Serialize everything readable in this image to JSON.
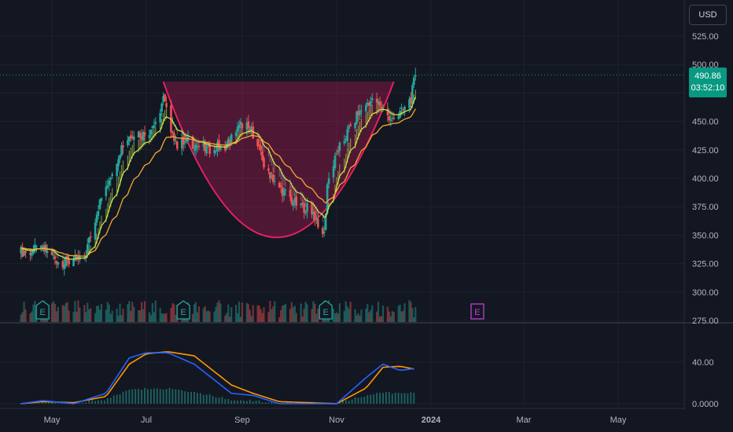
{
  "header": {
    "currency": "USD"
  },
  "last_price": {
    "value": "490.86",
    "countdown": "03:52:10"
  },
  "chart_data": {
    "type": "candlestick",
    "title": "",
    "price_axis": {
      "ticks": [
        "525.00",
        "500.00",
        "450.00",
        "425.00",
        "400.00",
        "375.00",
        "350.00",
        "325.00",
        "300.00",
        "275.00"
      ],
      "ylim": [
        275,
        535
      ]
    },
    "time_axis": {
      "ticks": [
        {
          "label": "May",
          "date": "2023-05-01",
          "bold": false
        },
        {
          "label": "Jul",
          "date": "2023-07-01",
          "bold": false
        },
        {
          "label": "Sep",
          "date": "2023-09-01",
          "bold": false
        },
        {
          "label": "Nov",
          "date": "2023-11-01",
          "bold": false
        },
        {
          "label": "2024",
          "date": "2024-01-01",
          "bold": true
        },
        {
          "label": "Mar",
          "date": "2024-03-01",
          "bold": false
        },
        {
          "label": "May",
          "date": "2024-05-01",
          "bold": false
        }
      ]
    },
    "price_keypoints": [
      {
        "date": "2023-04-11",
        "close": 335
      },
      {
        "date": "2023-04-25",
        "close": 338
      },
      {
        "date": "2023-05-08",
        "close": 325
      },
      {
        "date": "2023-05-22",
        "close": 330
      },
      {
        "date": "2023-05-31",
        "close": 375
      },
      {
        "date": "2023-06-07",
        "close": 400
      },
      {
        "date": "2023-06-15",
        "close": 428
      },
      {
        "date": "2023-06-22",
        "close": 440
      },
      {
        "date": "2023-07-01",
        "close": 438
      },
      {
        "date": "2023-07-08",
        "close": 452
      },
      {
        "date": "2023-07-12",
        "close": 470
      },
      {
        "date": "2023-07-20",
        "close": 430
      },
      {
        "date": "2023-07-28",
        "close": 432
      },
      {
        "date": "2023-08-10",
        "close": 425
      },
      {
        "date": "2023-08-22",
        "close": 430
      },
      {
        "date": "2023-09-01",
        "close": 448
      },
      {
        "date": "2023-09-08",
        "close": 440
      },
      {
        "date": "2023-09-15",
        "close": 412
      },
      {
        "date": "2023-09-25",
        "close": 392
      },
      {
        "date": "2023-10-05",
        "close": 378
      },
      {
        "date": "2023-10-16",
        "close": 372
      },
      {
        "date": "2023-10-24",
        "close": 350
      },
      {
        "date": "2023-10-26",
        "close": 395
      },
      {
        "date": "2023-11-02",
        "close": 425
      },
      {
        "date": "2023-11-14",
        "close": 455
      },
      {
        "date": "2023-11-22",
        "close": 468
      },
      {
        "date": "2023-11-29",
        "close": 465
      },
      {
        "date": "2023-12-06",
        "close": 450
      },
      {
        "date": "2023-12-13",
        "close": 458
      },
      {
        "date": "2023-12-19",
        "close": 470
      },
      {
        "date": "2023-12-22",
        "close": 491
      }
    ],
    "cup_pattern": {
      "rim_price": 485,
      "bottom_price": 348,
      "left_date": "2023-07-12",
      "bottom_date": "2023-09-22",
      "right_date": "2023-12-08"
    },
    "earnings_markers": [
      {
        "date": "2023-04-25",
        "label": "E",
        "upcoming": false
      },
      {
        "date": "2023-07-25",
        "label": "E",
        "upcoming": false
      },
      {
        "date": "2023-10-25",
        "label": "E",
        "upcoming": false
      },
      {
        "date": "2024-01-31",
        "label": "E",
        "upcoming": true
      }
    ],
    "indicator_axis": {
      "ticks": [
        "40.00",
        "0.0000"
      ],
      "ylim": [
        0,
        60
      ]
    },
    "indicator_keypoints": [
      {
        "date": "2023-04-11",
        "blue": 0,
        "orange": 0
      },
      {
        "date": "2023-04-25",
        "blue": 3,
        "orange": 2
      },
      {
        "date": "2023-05-15",
        "blue": 0,
        "orange": 1
      },
      {
        "date": "2023-06-05",
        "blue": 10,
        "orange": 7
      },
      {
        "date": "2023-06-20",
        "blue": 44,
        "orange": 38
      },
      {
        "date": "2023-07-01",
        "blue": 49,
        "orange": 48
      },
      {
        "date": "2023-07-15",
        "blue": 49,
        "orange": 50
      },
      {
        "date": "2023-08-01",
        "blue": 38,
        "orange": 46
      },
      {
        "date": "2023-08-25",
        "blue": 10,
        "orange": 18
      },
      {
        "date": "2023-09-08",
        "blue": 8,
        "orange": 10
      },
      {
        "date": "2023-09-25",
        "blue": 0,
        "orange": 2
      },
      {
        "date": "2023-11-01",
        "blue": 0,
        "orange": 0
      },
      {
        "date": "2023-11-20",
        "blue": 25,
        "orange": 15
      },
      {
        "date": "2023-12-01",
        "blue": 38,
        "orange": 35
      },
      {
        "date": "2023-12-12",
        "blue": 32,
        "orange": 36
      },
      {
        "date": "2023-12-22",
        "blue": 34,
        "orange": 33
      }
    ],
    "series": [
      {
        "role": "price",
        "color": "#26a69a",
        "down_color": "#ef5350"
      },
      {
        "role": "ema-fast",
        "color": "#c6e64b"
      },
      {
        "role": "ema-slow",
        "color": "#f7a634"
      },
      {
        "role": "indicator-blue",
        "color": "#2962ff"
      },
      {
        "role": "indicator-orange",
        "color": "#ff9800"
      }
    ],
    "grid": true
  }
}
